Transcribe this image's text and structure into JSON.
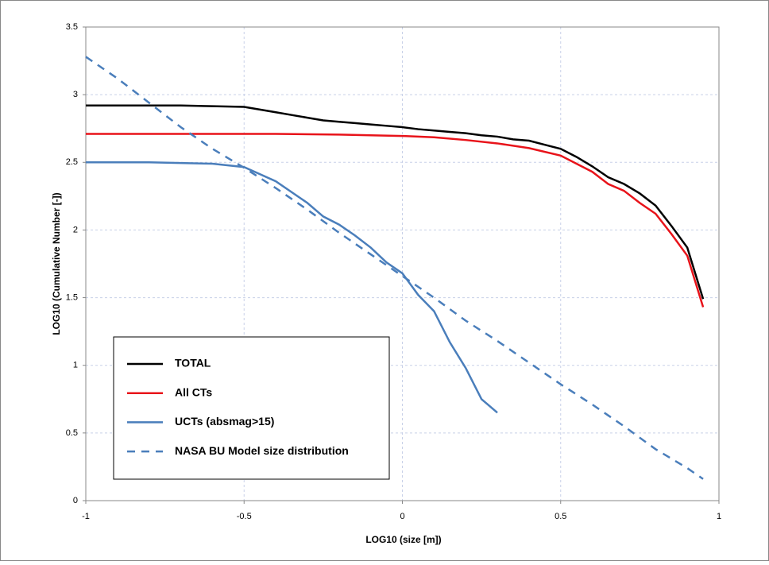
{
  "chart_data": {
    "type": "line",
    "xlabel": "LOG10 (size [m])",
    "ylabel": "LOG10 (Cumulative Number [-])",
    "xlim": [
      -1,
      1
    ],
    "ylim": [
      0,
      3.5
    ],
    "xticks": [
      -1,
      -0.5,
      0,
      0.5,
      1
    ],
    "yticks": [
      0,
      0.5,
      1,
      1.5,
      2,
      2.5,
      3,
      3.5
    ],
    "grid": true,
    "legend": "lower left",
    "series": [
      {
        "name": "TOTAL",
        "color": "#000000",
        "dash": false,
        "x": [
          -1,
          -0.9,
          -0.8,
          -0.7,
          -0.6,
          -0.5,
          -0.45,
          -0.4,
          -0.35,
          -0.3,
          -0.25,
          -0.2,
          -0.15,
          -0.1,
          -0.05,
          0,
          0.05,
          0.1,
          0.15,
          0.2,
          0.25,
          0.3,
          0.35,
          0.4,
          0.45,
          0.5,
          0.55,
          0.6,
          0.65,
          0.7,
          0.75,
          0.8,
          0.85,
          0.9,
          0.95
        ],
        "values": [
          2.92,
          2.92,
          2.92,
          2.92,
          2.915,
          2.91,
          2.89,
          2.87,
          2.85,
          2.83,
          2.81,
          2.8,
          2.79,
          2.78,
          2.77,
          2.76,
          2.745,
          2.735,
          2.725,
          2.715,
          2.7,
          2.69,
          2.67,
          2.66,
          2.63,
          2.6,
          2.54,
          2.47,
          2.39,
          2.34,
          2.27,
          2.18,
          2.03,
          1.87,
          1.49
        ]
      },
      {
        "name": "All CTs",
        "color": "#e8131a",
        "dash": false,
        "x": [
          -1,
          -0.8,
          -0.6,
          -0.4,
          -0.2,
          0,
          0.1,
          0.2,
          0.3,
          0.4,
          0.5,
          0.6,
          0.65,
          0.7,
          0.75,
          0.8,
          0.85,
          0.9,
          0.95
        ],
        "values": [
          2.71,
          2.71,
          2.71,
          2.71,
          2.705,
          2.695,
          2.685,
          2.665,
          2.64,
          2.605,
          2.55,
          2.43,
          2.34,
          2.29,
          2.2,
          2.12,
          1.97,
          1.81,
          1.43
        ]
      },
      {
        "name": "UCTs (absmag>15)",
        "color": "#4a7ebb",
        "dash": false,
        "x": [
          -1,
          -0.8,
          -0.6,
          -0.5,
          -0.4,
          -0.3,
          -0.25,
          -0.2,
          -0.15,
          -0.1,
          -0.05,
          0,
          0.05,
          0.1,
          0.15,
          0.2,
          0.25,
          0.3
        ],
        "values": [
          2.5,
          2.5,
          2.49,
          2.465,
          2.36,
          2.2,
          2.1,
          2.04,
          1.96,
          1.87,
          1.76,
          1.68,
          1.52,
          1.4,
          1.17,
          0.98,
          0.75,
          0.65
        ]
      },
      {
        "name": "NASA BU Model size distribution",
        "color": "#4a7ebb",
        "dash": true,
        "x": [
          -1,
          -0.9,
          -0.8,
          -0.7,
          -0.6,
          -0.5,
          -0.4,
          -0.3,
          -0.2,
          -0.1,
          0,
          0.1,
          0.2,
          0.3,
          0.4,
          0.5,
          0.6,
          0.7,
          0.8,
          0.9,
          0.95
        ],
        "values": [
          3.28,
          3.12,
          2.94,
          2.76,
          2.6,
          2.46,
          2.31,
          2.15,
          1.98,
          1.82,
          1.66,
          1.5,
          1.33,
          1.18,
          1.02,
          0.86,
          0.71,
          0.55,
          0.38,
          0.24,
          0.16
        ]
      }
    ]
  }
}
